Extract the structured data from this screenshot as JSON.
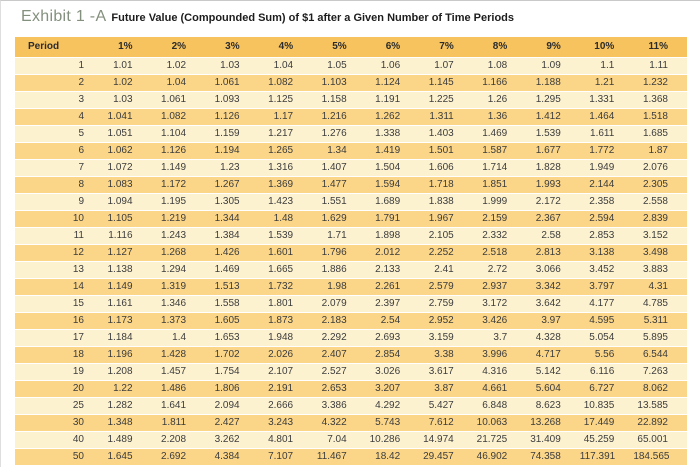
{
  "header": {
    "exhibit_label": "Exhibit 1 -A",
    "title": "Future Value (Compounded Sum) of $1 after a Given Number of Time Periods"
  },
  "colors": {
    "header_bg": "#f6c35f",
    "row_light": "#fdf2d0",
    "row_dark": "#fbd689",
    "exhibit_label_color": "#84907e"
  },
  "table": {
    "columns": [
      "Period",
      "1%",
      "2%",
      "3%",
      "4%",
      "5%",
      "6%",
      "7%",
      "8%",
      "9%",
      "10%",
      "11%"
    ],
    "rows": [
      {
        "period": "1",
        "values": [
          "1.01",
          "1.02",
          "1.03",
          "1.04",
          "1.05",
          "1.06",
          "1.07",
          "1.08",
          "1.09",
          "1.1",
          "1.11"
        ]
      },
      {
        "period": "2",
        "values": [
          "1.02",
          "1.04",
          "1.061",
          "1.082",
          "1.103",
          "1.124",
          "1.145",
          "1.166",
          "1.188",
          "1.21",
          "1.232"
        ]
      },
      {
        "period": "3",
        "values": [
          "1.03",
          "1.061",
          "1.093",
          "1.125",
          "1.158",
          "1.191",
          "1.225",
          "1.26",
          "1.295",
          "1.331",
          "1.368"
        ]
      },
      {
        "period": "4",
        "values": [
          "1.041",
          "1.082",
          "1.126",
          "1.17",
          "1.216",
          "1.262",
          "1.311",
          "1.36",
          "1.412",
          "1.464",
          "1.518"
        ]
      },
      {
        "period": "5",
        "values": [
          "1.051",
          "1.104",
          "1.159",
          "1.217",
          "1.276",
          "1.338",
          "1.403",
          "1.469",
          "1.539",
          "1.611",
          "1.685"
        ]
      },
      {
        "period": "6",
        "values": [
          "1.062",
          "1.126",
          "1.194",
          "1.265",
          "1.34",
          "1.419",
          "1.501",
          "1.587",
          "1.677",
          "1.772",
          "1.87"
        ]
      },
      {
        "period": "7",
        "values": [
          "1.072",
          "1.149",
          "1.23",
          "1.316",
          "1.407",
          "1.504",
          "1.606",
          "1.714",
          "1.828",
          "1.949",
          "2.076"
        ]
      },
      {
        "period": "8",
        "values": [
          "1.083",
          "1.172",
          "1.267",
          "1.369",
          "1.477",
          "1.594",
          "1.718",
          "1.851",
          "1.993",
          "2.144",
          "2.305"
        ]
      },
      {
        "period": "9",
        "values": [
          "1.094",
          "1.195",
          "1.305",
          "1.423",
          "1.551",
          "1.689",
          "1.838",
          "1.999",
          "2.172",
          "2.358",
          "2.558"
        ]
      },
      {
        "period": "10",
        "values": [
          "1.105",
          "1.219",
          "1.344",
          "1.48",
          "1.629",
          "1.791",
          "1.967",
          "2.159",
          "2.367",
          "2.594",
          "2.839"
        ]
      },
      {
        "period": "11",
        "values": [
          "1.116",
          "1.243",
          "1.384",
          "1.539",
          "1.71",
          "1.898",
          "2.105",
          "2.332",
          "2.58",
          "2.853",
          "3.152"
        ]
      },
      {
        "period": "12",
        "values": [
          "1.127",
          "1.268",
          "1.426",
          "1.601",
          "1.796",
          "2.012",
          "2.252",
          "2.518",
          "2.813",
          "3.138",
          "3.498"
        ]
      },
      {
        "period": "13",
        "values": [
          "1.138",
          "1.294",
          "1.469",
          "1.665",
          "1.886",
          "2.133",
          "2.41",
          "2.72",
          "3.066",
          "3.452",
          "3.883"
        ]
      },
      {
        "period": "14",
        "values": [
          "1.149",
          "1.319",
          "1.513",
          "1.732",
          "1.98",
          "2.261",
          "2.579",
          "2.937",
          "3.342",
          "3.797",
          "4.31"
        ]
      },
      {
        "period": "15",
        "values": [
          "1.161",
          "1.346",
          "1.558",
          "1.801",
          "2.079",
          "2.397",
          "2.759",
          "3.172",
          "3.642",
          "4.177",
          "4.785"
        ]
      },
      {
        "period": "16",
        "values": [
          "1.173",
          "1.373",
          "1.605",
          "1.873",
          "2.183",
          "2.54",
          "2.952",
          "3.426",
          "3.97",
          "4.595",
          "5.311"
        ]
      },
      {
        "period": "17",
        "values": [
          "1.184",
          "1.4",
          "1.653",
          "1.948",
          "2.292",
          "2.693",
          "3.159",
          "3.7",
          "4.328",
          "5.054",
          "5.895"
        ]
      },
      {
        "period": "18",
        "values": [
          "1.196",
          "1.428",
          "1.702",
          "2.026",
          "2.407",
          "2.854",
          "3.38",
          "3.996",
          "4.717",
          "5.56",
          "6.544"
        ]
      },
      {
        "period": "19",
        "values": [
          "1.208",
          "1.457",
          "1.754",
          "2.107",
          "2.527",
          "3.026",
          "3.617",
          "4.316",
          "5.142",
          "6.116",
          "7.263"
        ]
      },
      {
        "period": "20",
        "values": [
          "1.22",
          "1.486",
          "1.806",
          "2.191",
          "2.653",
          "3.207",
          "3.87",
          "4.661",
          "5.604",
          "6.727",
          "8.062"
        ]
      },
      {
        "period": "25",
        "values": [
          "1.282",
          "1.641",
          "2.094",
          "2.666",
          "3.386",
          "4.292",
          "5.427",
          "6.848",
          "8.623",
          "10.835",
          "13.585"
        ]
      },
      {
        "period": "30",
        "values": [
          "1.348",
          "1.811",
          "2.427",
          "3.243",
          "4.322",
          "5.743",
          "7.612",
          "10.063",
          "13.268",
          "17.449",
          "22.892"
        ]
      },
      {
        "period": "40",
        "values": [
          "1.489",
          "2.208",
          "3.262",
          "4.801",
          "7.04",
          "10.286",
          "14.974",
          "21.725",
          "31.409",
          "45.259",
          "65.001"
        ]
      },
      {
        "period": "50",
        "values": [
          "1.645",
          "2.692",
          "4.384",
          "7.107",
          "11.467",
          "18.42",
          "29.457",
          "46.902",
          "74.358",
          "117.391",
          "184.565"
        ]
      }
    ]
  }
}
